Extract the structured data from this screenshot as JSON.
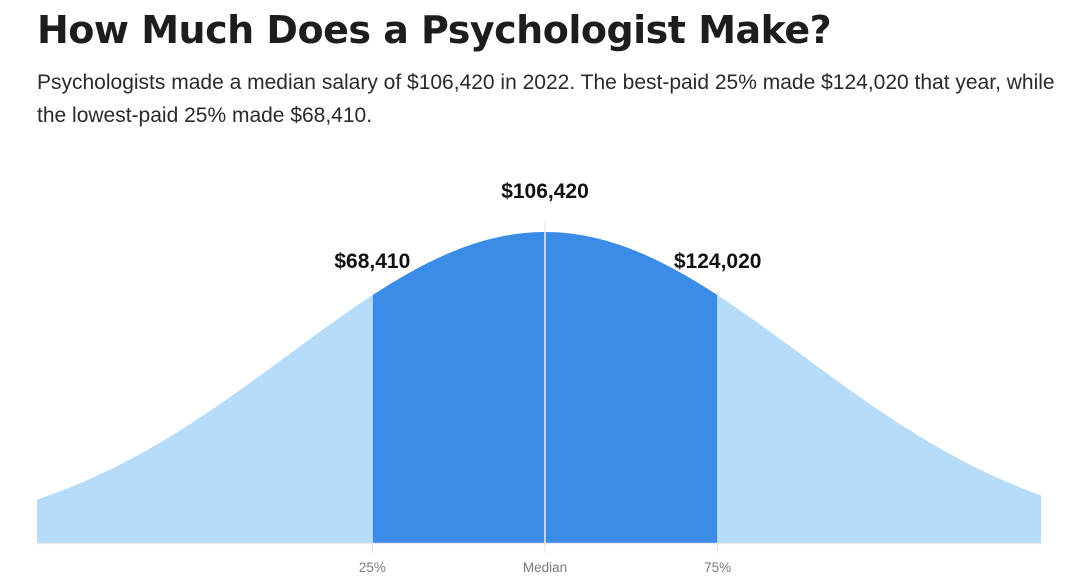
{
  "header": {
    "title": "How Much Does a Psychologist Make?",
    "subtitle": "Psychologists made a median salary of $106,420 in 2022. The best-paid 25% made $124,020 that year, while the lowest-paid 25% made $68,410."
  },
  "chart_data": {
    "type": "area",
    "title": "How Much Does a Psychologist Make?",
    "xlabel": "",
    "ylabel": "",
    "grid": false,
    "legend": "none",
    "colors": {
      "tails": "#b6dcfa",
      "middle": "#3a8ce6",
      "marker_lines": "#e4e4e4",
      "median_line": "#ffffff",
      "baseline": "#e6e6e6"
    },
    "markers": [
      {
        "percentile": "25%",
        "percentile_value": 25,
        "tick_label": "25%",
        "value": 68410,
        "value_label": "$68,410"
      },
      {
        "percentile": "Median",
        "percentile_value": 50,
        "tick_label": "Median",
        "value": 106420,
        "value_label": "$106,420"
      },
      {
        "percentile": "75%",
        "percentile_value": 75,
        "tick_label": "75%",
        "value": 124020,
        "value_label": "$124,020"
      }
    ],
    "shaded_range": [
      "25%",
      "75%"
    ]
  }
}
